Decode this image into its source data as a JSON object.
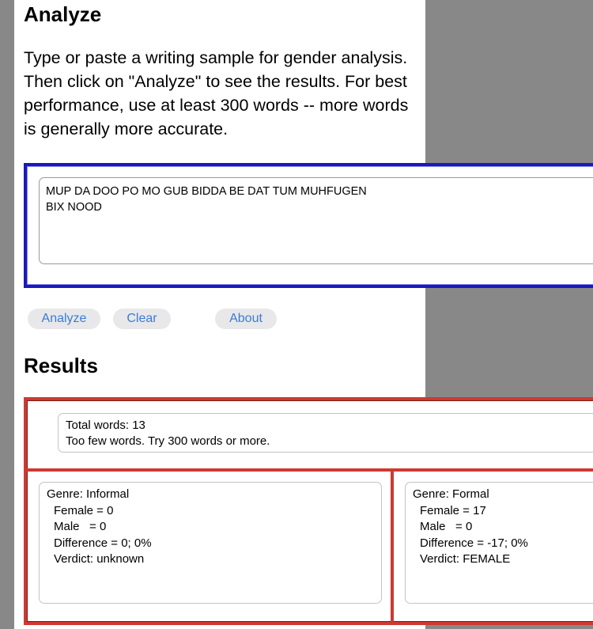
{
  "analyze": {
    "title": "Analyze",
    "intro": "Type or paste a writing sample for gender analysis. Then click on \"Analyze\" to see the results. For best performance, use at least 300 words -- more words is generally more accurate.",
    "textarea_value": "MUP DA DOO PO MO GUB BIDDA BE DAT TUM MUHFUGEN\nBIX NOOD"
  },
  "buttons": {
    "analyze": "Analyze",
    "clear": "Clear",
    "about": "About"
  },
  "results": {
    "title": "Results",
    "summary": {
      "total": "Total words: 13",
      "warning": "Too few words.  Try 300 words or more."
    },
    "informal": {
      "genre": "Genre: Informal",
      "female": "Female = 0",
      "male": "Male   = 0",
      "difference": "Difference = 0; 0%",
      "verdict": "Verdict: unknown"
    },
    "formal": {
      "genre": "Genre: Formal",
      "female": "Female = 17",
      "male": "Male   = 0",
      "difference": "Difference = -17; 0%",
      "verdict": "Verdict: FEMALE"
    }
  },
  "colors": {
    "background": "#888888",
    "input_frame": "#1a1ab8",
    "results_frame": "#cc3a33",
    "button_text": "#3a7bd5"
  }
}
